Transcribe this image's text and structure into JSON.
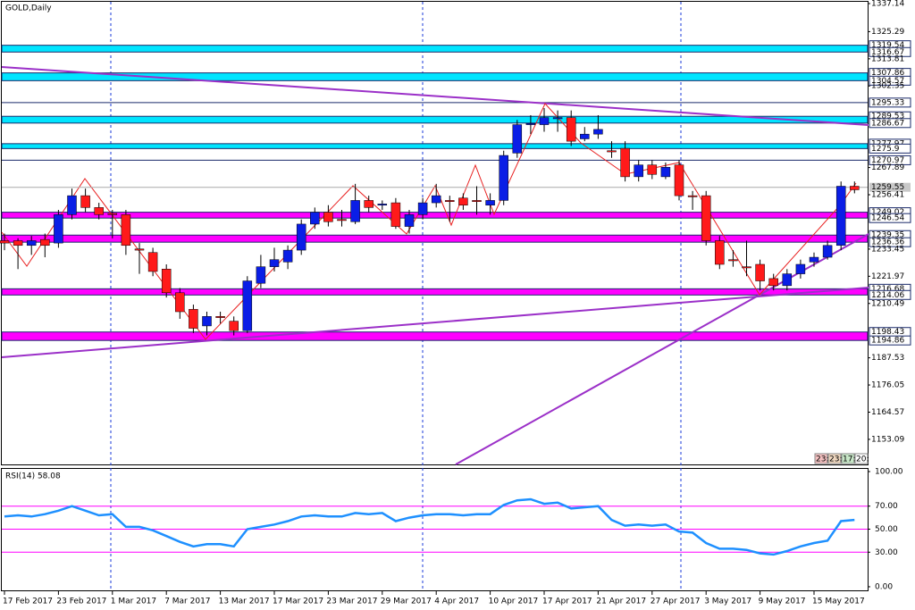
{
  "chart_data": [
    {
      "type": "candlestick",
      "title": "GOLD,Daily",
      "categories": [
        "17 Feb 2017",
        null,
        null,
        null,
        "23 Feb 2017",
        null,
        null,
        null,
        "1 Mar 2017",
        null,
        null,
        null,
        "7 Mar 2017",
        null,
        null,
        null,
        "13 Mar 2017",
        null,
        null,
        null,
        "17 Mar 2017",
        null,
        null,
        null,
        "23 Mar 2017",
        null,
        null,
        null,
        "29 Mar 2017",
        null,
        null,
        null,
        "4 Apr 2017",
        null,
        null,
        null,
        "10 Apr 2017",
        null,
        null,
        null,
        "17 Apr 2017",
        null,
        null,
        null,
        "21 Apr 2017",
        null,
        null,
        null,
        "27 Apr 2017",
        null,
        null,
        null,
        "3 May 2017",
        null,
        null,
        null,
        "9 May 2017",
        null,
        null,
        null,
        "15 May 2017",
        null,
        null,
        null
      ],
      "open": [
        1237,
        1237,
        1235,
        1237.5,
        1236,
        1248,
        1256,
        1251,
        1248.5,
        1248,
        1233.5,
        1232,
        1225,
        1215,
        1208,
        1201,
        1205,
        1203,
        1199,
        1219,
        1226,
        1228,
        1233,
        1244,
        1249,
        1246,
        1245,
        1254,
        1252,
        1253,
        1243,
        1248,
        1253,
        1254,
        1255,
        1254,
        1252,
        1254,
        1274,
        1286,
        1286,
        1288.5,
        1289,
        1280,
        1282,
        1275,
        1276,
        1264,
        1269,
        1264,
        1269,
        1256,
        1256,
        1237,
        1229,
        1226,
        1227,
        1221,
        1218,
        1223,
        1228,
        1230,
        1235,
        1260
      ],
      "high": [
        1240,
        1238,
        1239,
        1240,
        1250,
        1259,
        1259,
        1253,
        1250,
        1250,
        1236,
        1234,
        1227,
        1217,
        1210,
        1207,
        1207,
        1205,
        1222,
        1231,
        1234,
        1235,
        1246,
        1251,
        1252,
        1250,
        1261,
        1256,
        1254,
        1255,
        1250,
        1255,
        1261,
        1256,
        1257,
        1260,
        1257,
        1275,
        1288,
        1290,
        1293,
        1292,
        1292,
        1285,
        1290,
        1279,
        1279,
        1271,
        1271,
        1270,
        1271,
        1258,
        1258,
        1239,
        1233,
        1237,
        1229,
        1223,
        1225,
        1229,
        1232,
        1237,
        1262,
        1262
      ],
      "low": [
        1233,
        1225,
        1231,
        1230,
        1234,
        1246,
        1249,
        1246,
        1238,
        1231,
        1223,
        1222,
        1213,
        1204,
        1198,
        1197,
        1202,
        1197,
        1198,
        1217,
        1224,
        1225,
        1231,
        1242,
        1243,
        1243,
        1244,
        1249,
        1250,
        1242,
        1240,
        1246,
        1251,
        1245,
        1250,
        1248,
        1248,
        1252,
        1272,
        1282,
        1283,
        1283,
        1277,
        1279,
        1280,
        1272,
        1262,
        1262,
        1263,
        1263,
        1254,
        1250,
        1235,
        1225,
        1226,
        1222,
        1216,
        1216,
        1216,
        1221,
        1226,
        1229,
        1233,
        1257
      ],
      "close": [
        1236,
        1235,
        1237,
        1235,
        1248,
        1256,
        1251,
        1248,
        1248,
        1235,
        1233,
        1224,
        1215,
        1207,
        1200,
        1205,
        1204.5,
        1199,
        1220,
        1226,
        1229,
        1233,
        1244,
        1249,
        1245,
        1245.5,
        1254,
        1251,
        1252.5,
        1243,
        1248,
        1253,
        1256,
        1253.5,
        1252,
        1253.5,
        1254,
        1273,
        1286,
        1286.5,
        1289,
        1289,
        1279,
        1282,
        1284,
        1274.5,
        1264,
        1269,
        1265,
        1268,
        1256,
        1255.5,
        1237,
        1227,
        1228.5,
        1225.5,
        1220,
        1218,
        1223,
        1227,
        1230,
        1235,
        1260,
        1258.5
      ],
      "up_color": "#0a1ee6",
      "down_color": "#ff1a1a",
      "ylim": [
        1142.5,
        1338.65
      ],
      "yticks": [
        1153.09,
        1164.57,
        1176.05,
        1187.53,
        1210.49,
        1221.97,
        1233.45,
        1256.41,
        1267.89,
        1302.35,
        1313.81,
        1325.29,
        1337.14
      ],
      "zones": [
        {
          "high": 1319.54,
          "low": 1316.67,
          "color": "#00e5ff"
        },
        {
          "high": 1307.86,
          "low": 1304.57,
          "color": "#00e5ff"
        },
        {
          "high": 1289.53,
          "low": 1286.67,
          "color": "#00e5ff"
        },
        {
          "high": 1277.97,
          "low": 1275.9,
          "color": "#00e5ff"
        },
        {
          "high": 1249.02,
          "low": 1246.54,
          "color": "#ff00ff"
        },
        {
          "high": 1239.35,
          "low": 1236.36,
          "color": "#ff00ff"
        },
        {
          "high": 1216.68,
          "low": 1214.06,
          "color": "#ff00ff"
        },
        {
          "high": 1198.43,
          "low": 1194.86,
          "color": "#ff00ff"
        }
      ],
      "levels": [
        1295.33,
        1270.97
      ],
      "current_price": 1259.55,
      "corner_labels": [
        "23:",
        "23:",
        "17:",
        "20:"
      ]
    },
    {
      "type": "line",
      "title": "RSI(14) 58.08",
      "color": "#1e90ff",
      "values": [
        61,
        62,
        61,
        63,
        66,
        70,
        66,
        62,
        63,
        52,
        52,
        49,
        44,
        39,
        35,
        37,
        37,
        35,
        50,
        52,
        54,
        57,
        61,
        62,
        61,
        61,
        64,
        63,
        64,
        57,
        60,
        62,
        63,
        63,
        62,
        63,
        63,
        71,
        75,
        76,
        72,
        73,
        68,
        69,
        70,
        58,
        53,
        54,
        53,
        54,
        48,
        47,
        38,
        33,
        33,
        32,
        29,
        28,
        31,
        35,
        38,
        40,
        57,
        58.08
      ],
      "ylim": [
        -3.9,
        103.1
      ],
      "yticks": [
        {
          "value": 0,
          "label": "0.00"
        },
        {
          "value": 30,
          "label": "30.00"
        },
        {
          "value": 50,
          "label": "50.00"
        },
        {
          "value": 70,
          "label": "70.00"
        },
        {
          "value": 100,
          "label": "100.00"
        }
      ],
      "levels": [
        30,
        50,
        70
      ],
      "level_color": "#ff00ff"
    }
  ]
}
